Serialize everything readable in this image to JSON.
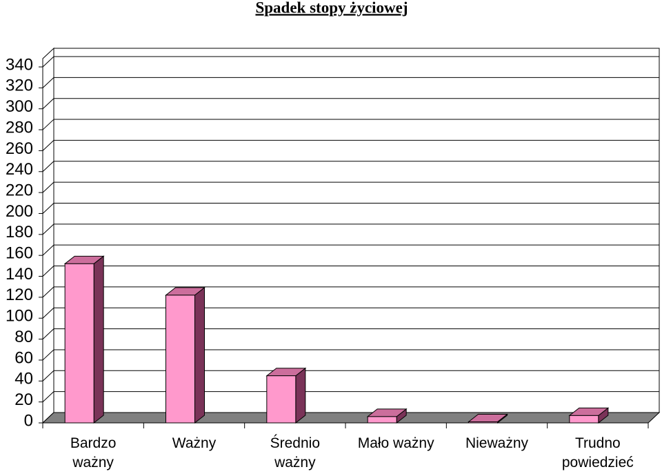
{
  "chart_data": {
    "type": "bar",
    "title": "Spadek stopy życiowej",
    "categories": [
      "Bardzo ważny",
      "Ważny",
      "Średnio ważny",
      "Mało ważny",
      "Nieważny",
      "Trudno powiedzieć"
    ],
    "values": [
      152,
      122,
      45,
      6,
      1,
      7
    ],
    "color": "#ff99cc",
    "ylim": [
      0,
      340
    ],
    "yticks": [
      0,
      20,
      40,
      60,
      80,
      100,
      120,
      140,
      160,
      180,
      200,
      220,
      240,
      260,
      280,
      300,
      320,
      340
    ],
    "grid": true
  }
}
